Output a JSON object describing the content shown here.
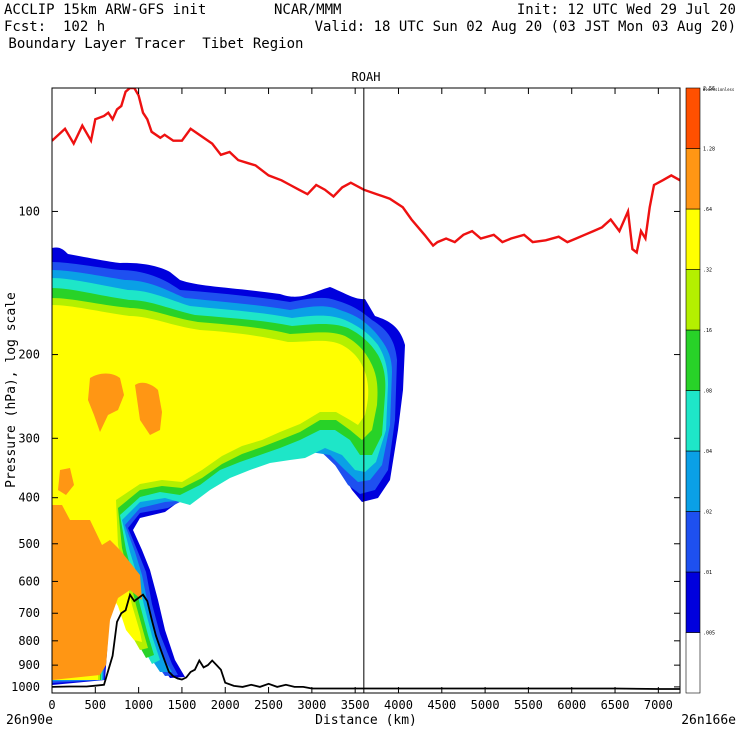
{
  "header": {
    "line1_left": "ACCLIP 15km ARW-GFS init",
    "line1_mid": "NCAR/MMM",
    "line1_right": "Init: 12 UTC Wed 29 Jul 20",
    "line2_left": "Fcst:  102 h",
    "line2_right": "Valid: 18 UTC Sun 02 Aug 20 (03 JST Mon 03 Aug 20)",
    "line3_left": " Boundary Layer Tracer  Tibet Region"
  },
  "chart_data": {
    "type": "heatmap",
    "title": "ROAH",
    "xlabel": "Distance (km)",
    "ylabel": "Pressure (hPa), log scale",
    "xlim": [
      0,
      7250
    ],
    "ylim": [
      1030,
      55
    ],
    "y_scale": "log",
    "x_ticks": [
      0,
      500,
      1000,
      1500,
      2000,
      2500,
      3000,
      3500,
      4000,
      4500,
      5000,
      5500,
      6000,
      6500,
      7000
    ],
    "x_tick_labels": [
      "0",
      "500",
      "1000",
      "1500",
      "2000",
      "2500",
      "3000",
      "3500",
      "4000",
      "4500",
      "5000",
      "5500",
      "6000",
      "6500",
      "7000"
    ],
    "y_ticks": [
      100,
      200,
      300,
      400,
      500,
      600,
      700,
      800,
      900,
      1000
    ],
    "y_tick_labels": [
      "100",
      "200",
      "300",
      "400",
      "500",
      "600",
      "700",
      "800",
      "900",
      "1000"
    ],
    "x_endpoint_labels": {
      "left": "26n90e",
      "right": "26n166e"
    },
    "vertical_marker_km": 3600,
    "colorbar": {
      "top_label": "Dimensionless",
      "levels": [
        0,
        0.005,
        0.01,
        0.02,
        0.04,
        0.08,
        0.16,
        0.32,
        0.64,
        1.28,
        2.56
      ],
      "tick_labels": [
        ".005",
        ".01",
        ".02",
        ".04",
        ".08",
        ".16",
        ".32",
        ".64",
        "1.28",
        "2.56"
      ],
      "colors": [
        "#ffffff",
        "#0000dd",
        "#1e50f0",
        "#0aa0e6",
        "#1ee6c8",
        "#28d228",
        "#b4f000",
        "#ffff00",
        "#ff9614",
        "#ff5000"
      ]
    },
    "fill_colors": {
      "blue": "#0000dd",
      "mid_blue": "#1e50f0",
      "light_blue": "#0aa0e6",
      "cyan": "#1ee6c8",
      "green": "#28d228",
      "yellow_green": "#b4f000",
      "yellow": "#ffff00",
      "orange": "#ff9614"
    },
    "series": [
      {
        "kind": "line",
        "color": "#ee1111",
        "x": [
          0,
          150,
          250,
          350,
          450,
          500,
          600,
          650,
          700,
          750,
          800,
          850,
          900,
          950,
          1000,
          1050,
          1100,
          1150,
          1250,
          1300,
          1400,
          1500,
          1600,
          1700,
          1850,
          1950,
          2050,
          2150,
          2250,
          2350,
          2500,
          2650,
          2750,
          2850,
          2950,
          3050,
          3150,
          3250,
          3350,
          3450,
          3600,
          3750,
          3900,
          4050,
          4150,
          4300,
          4400,
          4450,
          4550,
          4650,
          4750,
          4850,
          4950,
          5100,
          5200,
          5300,
          5450,
          5550,
          5700,
          5850,
          5950,
          6050,
          6150,
          6250,
          6350,
          6450,
          6550,
          6650,
          6700,
          6750,
          6800,
          6850,
          6900,
          6950,
          7050,
          7150,
          7250
        ],
        "y": [
          71,
          67,
          72,
          66,
          71,
          64,
          63,
          62,
          64,
          61,
          60,
          56,
          55,
          55,
          57,
          62,
          64,
          68,
          70,
          69,
          71,
          71,
          67,
          69,
          72,
          76,
          75,
          78,
          79,
          80,
          84,
          86,
          88,
          90,
          92,
          88,
          90,
          93,
          89,
          87,
          90,
          92,
          94,
          98,
          104,
          112,
          118,
          116,
          114,
          116,
          112,
          110,
          114,
          112,
          116,
          114,
          112,
          116,
          115,
          113,
          116,
          114,
          112,
          110,
          108,
          104,
          110,
          100,
          120,
          122,
          110,
          114,
          98,
          88,
          86,
          84,
          86
        ]
      },
      {
        "kind": "line",
        "color": "#000000",
        "x": [
          0,
          200,
          400,
          500,
          600,
          700,
          750,
          800,
          850,
          900,
          950,
          1000,
          1050,
          1100,
          1150,
          1200,
          1250,
          1300,
          1350,
          1400,
          1450,
          1500,
          1550,
          1600,
          1650,
          1700,
          1750,
          1800,
          1850,
          1900,
          1950,
          2000,
          2100,
          2200,
          2300,
          2400,
          2500,
          2600,
          2700,
          2800,
          2900,
          3000,
          3500,
          4000,
          4500,
          5000,
          5500,
          6000,
          6500,
          7000,
          7250
        ],
        "y": [
          1000,
          998,
          998,
          994,
          990,
          860,
          730,
          700,
          690,
          640,
          660,
          650,
          640,
          660,
          720,
          780,
          830,
          880,
          930,
          950,
          960,
          965,
          955,
          930,
          920,
          880,
          910,
          900,
          880,
          900,
          920,
          980,
          995,
          1000,
          990,
          1000,
          985,
          1000,
          990,
          1000,
          1000,
          1008,
          1008,
          1008,
          1008,
          1008,
          1008,
          1008,
          1008,
          1010,
          1010
        ]
      }
    ]
  }
}
